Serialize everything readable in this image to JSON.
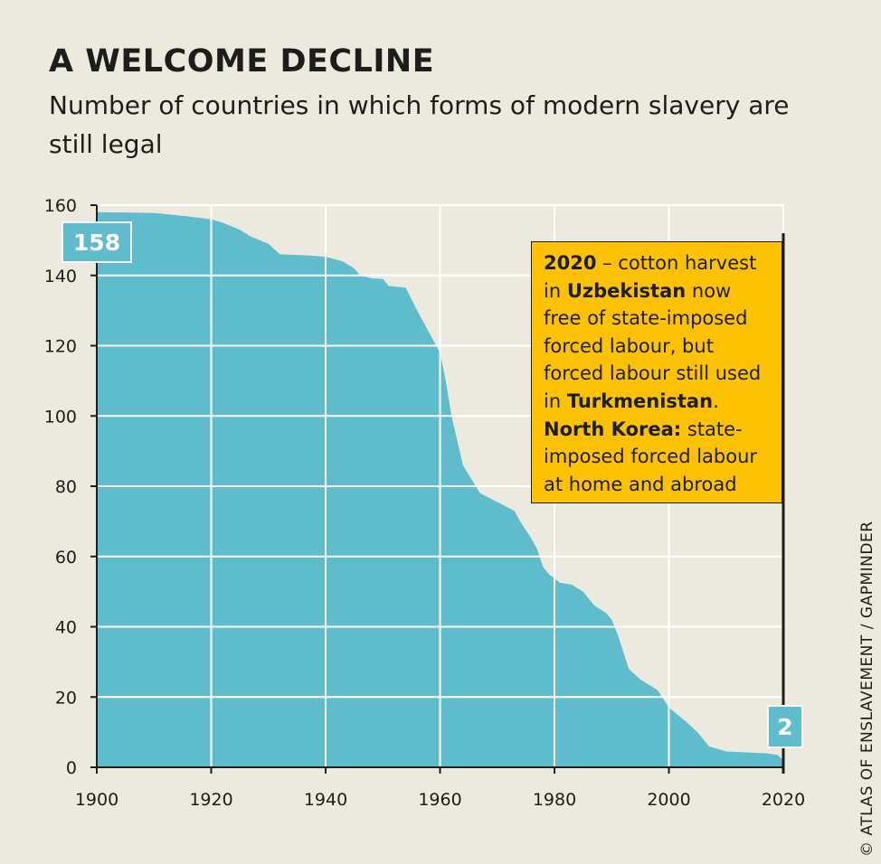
{
  "header": {
    "title": "A WELCOME DECLINE",
    "subtitle": "Number of countries in which forms of modern slavery are still legal"
  },
  "annotation": {
    "year": "2020",
    "t1": " – cotton harvest in ",
    "country1": "Uzbekistan",
    "t2": " now free of state-imposed forced labour, but forced labour still used in ",
    "country2": "Turkmenistan",
    "t3": ".",
    "country3": "North Korea:",
    "t4": " state-imposed forced labour at home and abroad"
  },
  "credit": "© ATLAS OF ENSLAVEMENT / GAPMINDER",
  "colors": {
    "background": "#eceade",
    "area": "#5fbccc",
    "annotation": "#fcc100",
    "text": "#1d1d1b"
  },
  "chart_data": {
    "type": "area",
    "title": "A WELCOME DECLINE",
    "subtitle": "Number of countries in which forms of modern slavery are still legal",
    "xlim": [
      1900,
      2020
    ],
    "ylim": [
      0,
      160
    ],
    "x_ticks": [
      1900,
      1920,
      1940,
      1960,
      1980,
      2000,
      2020
    ],
    "y_ticks": [
      0,
      20,
      40,
      60,
      80,
      100,
      120,
      140,
      160
    ],
    "grid": true,
    "start_label": "158",
    "end_label": "2",
    "points": [
      [
        1900,
        158
      ],
      [
        1910,
        157.8
      ],
      [
        1915,
        157
      ],
      [
        1920,
        156
      ],
      [
        1922,
        155
      ],
      [
        1925,
        153
      ],
      [
        1927,
        151
      ],
      [
        1930,
        149
      ],
      [
        1932,
        146
      ],
      [
        1937,
        145.7
      ],
      [
        1940,
        145.3
      ],
      [
        1943,
        144
      ],
      [
        1945,
        142
      ],
      [
        1946,
        140
      ],
      [
        1948,
        139.2
      ],
      [
        1950,
        139
      ],
      [
        1951,
        137
      ],
      [
        1954,
        136.5
      ],
      [
        1956,
        130
      ],
      [
        1959,
        121
      ],
      [
        1960,
        118
      ],
      [
        1961,
        110
      ],
      [
        1962,
        100
      ],
      [
        1963,
        93
      ],
      [
        1964,
        86
      ],
      [
        1967,
        78
      ],
      [
        1970,
        75.5
      ],
      [
        1973,
        73
      ],
      [
        1974,
        70
      ],
      [
        1976,
        65
      ],
      [
        1977,
        62
      ],
      [
        1978,
        57
      ],
      [
        1979,
        55
      ],
      [
        1981,
        52.5
      ],
      [
        1983,
        52
      ],
      [
        1985,
        50
      ],
      [
        1987,
        46
      ],
      [
        1989,
        44
      ],
      [
        1990,
        42
      ],
      [
        1991,
        38
      ],
      [
        1993,
        28
      ],
      [
        1995,
        25
      ],
      [
        1998,
        22
      ],
      [
        2000,
        17
      ],
      [
        2003,
        13
      ],
      [
        2005,
        10
      ],
      [
        2007,
        6
      ],
      [
        2010,
        4.5
      ],
      [
        2017,
        4
      ],
      [
        2019,
        3.5
      ],
      [
        2020,
        2
      ]
    ]
  }
}
